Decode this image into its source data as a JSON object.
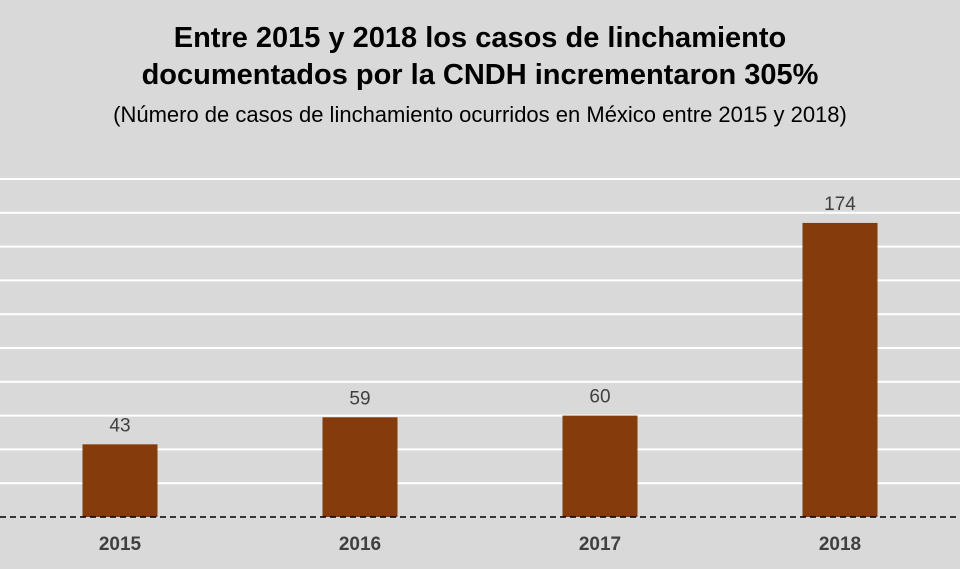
{
  "chart_data": {
    "type": "bar",
    "title_line1": "Entre 2015 y 2018 los casos de linchamiento",
    "title_line2": "documentados por la CNDH incrementaron 305%",
    "subtitle": "(Número de casos de linchamiento ocurridos en México entre 2015 y 2018)",
    "categories": [
      "2015",
      "2016",
      "2017",
      "2018"
    ],
    "values": [
      43,
      59,
      60,
      174
    ],
    "data_labels": [
      "43",
      "59",
      "60",
      "174"
    ],
    "ylim": [
      0,
      200
    ],
    "grid_step": 20,
    "grid": true,
    "y_axis_labels_shown": false,
    "colors": {
      "bar": "#843c0c",
      "background": "#d9d9d9",
      "grid": "#ffffff"
    }
  }
}
